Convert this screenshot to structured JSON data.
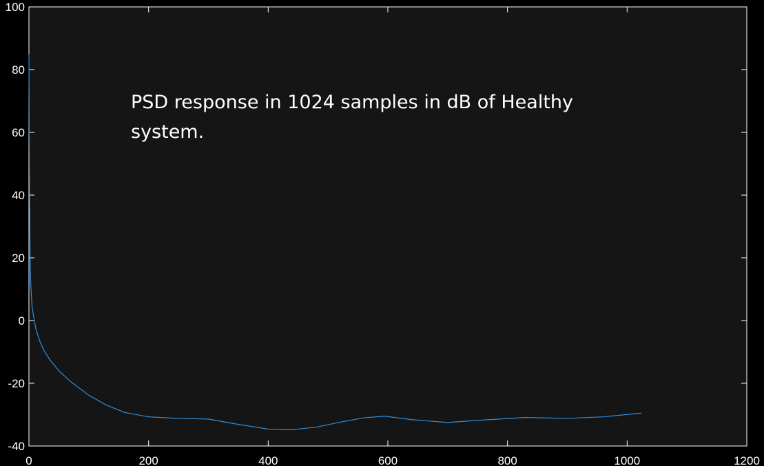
{
  "chart_data": {
    "type": "line",
    "title": "",
    "xlabel": "",
    "ylabel": "",
    "xlim": [
      0,
      1200
    ],
    "ylim": [
      -40,
      100
    ],
    "x_ticks": [
      0,
      200,
      400,
      600,
      800,
      1000,
      1200
    ],
    "y_ticks": [
      -40,
      -20,
      0,
      20,
      40,
      60,
      80,
      100
    ],
    "grid": false,
    "background_color": "#151515",
    "figure_color": "#000000",
    "axis_color": "#ffffff",
    "series": [
      {
        "color": "#2f8fde",
        "x": [
          0,
          0.5,
          1,
          2,
          3,
          5,
          8,
          12,
          18,
          25,
          35,
          50,
          70,
          100,
          130,
          160,
          200,
          250,
          300,
          350,
          400,
          440,
          480,
          520,
          560,
          595,
          640,
          700,
          760,
          830,
          900,
          960,
          1024
        ],
        "y": [
          85,
          60,
          40,
          20,
          12,
          5,
          1,
          -3,
          -6.5,
          -9.5,
          -12.5,
          -16,
          -19.5,
          -23.8,
          -27,
          -29.3,
          -30.7,
          -31.2,
          -31.4,
          -33.1,
          -34.6,
          -34.8,
          -34,
          -32.4,
          -31,
          -30.5,
          -31.6,
          -32.5,
          -31.7,
          -30.9,
          -31.2,
          -30.7,
          -29.5
        ]
      }
    ]
  },
  "annotation": {
    "line1": "PSD response in 1024 samples in dB of Healthy",
    "line2": "system."
  }
}
